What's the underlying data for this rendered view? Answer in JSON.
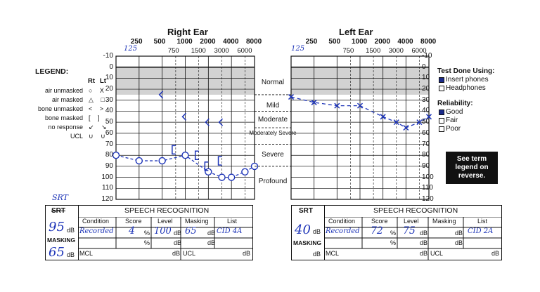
{
  "right_ear": {
    "title": "Right Ear",
    "freq_top": [
      "250",
      "500",
      "1000",
      "2000",
      "4000",
      "8000"
    ],
    "freq_sub": [
      "750",
      "1500",
      "3000",
      "6000"
    ],
    "handwritten_low_freq": "125"
  },
  "left_ear": {
    "title": "Left Ear",
    "freq_top": [
      "250",
      "500",
      "1000",
      "2000",
      "4000",
      "8000"
    ],
    "freq_sub": [
      "750",
      "1500",
      "3000",
      "6000"
    ],
    "handwritten_low_freq": "125"
  },
  "levels": [
    "-10",
    "0",
    "10",
    "20",
    "30",
    "40",
    "50",
    "60",
    "70",
    "80",
    "90",
    "100",
    "110",
    "120"
  ],
  "legend": {
    "title": "LEGEND:",
    "rt": "Rt",
    "lt": "Lt",
    "rows": [
      {
        "label": "air unmasked",
        "symbols": "○ X"
      },
      {
        "label": "air masked",
        "symbols": "△ □"
      },
      {
        "label": "bone unmasked",
        "symbols": "< >"
      },
      {
        "label": "bone masked",
        "symbols": "[ ]"
      },
      {
        "label": "no response",
        "symbols": "↙ ↘"
      },
      {
        "label": "UCL",
        "symbols": "∪ ∪"
      }
    ]
  },
  "categories": [
    "Normal",
    "Mild",
    "Moderate",
    "Moderately Severe",
    "Severe",
    "Profound"
  ],
  "test_done": {
    "title": "Test Done Using:",
    "options": [
      {
        "label": "Insert phones",
        "checked": true
      },
      {
        "label": "Headphones",
        "checked": false
      }
    ]
  },
  "reliability": {
    "title": "Reliability:",
    "options": [
      {
        "label": "Good",
        "checked": true
      },
      {
        "label": "Fair",
        "checked": false
      },
      {
        "label": "Poor",
        "checked": false
      }
    ]
  },
  "note": "See term legend on reverse.",
  "audiogram_data": {
    "right_air_unmasked": [
      [
        125,
        80
      ],
      [
        250,
        85
      ],
      [
        500,
        85
      ],
      [
        1000,
        80
      ],
      [
        2000,
        95
      ],
      [
        3000,
        100
      ],
      [
        4000,
        100
      ],
      [
        6000,
        95
      ],
      [
        8000,
        90
      ]
    ],
    "right_bone_unmasked": [
      [
        500,
        25
      ],
      [
        1000,
        45
      ],
      [
        2000,
        50
      ],
      [
        3000,
        50
      ]
    ],
    "right_bone_masked": [
      [
        750,
        75
      ],
      [
        1500,
        80
      ],
      [
        2000,
        90
      ],
      [
        3000,
        85
      ]
    ],
    "left_air_unmasked": [
      [
        125,
        27
      ],
      [
        250,
        32
      ],
      [
        500,
        35
      ],
      [
        1000,
        35
      ],
      [
        2000,
        45
      ],
      [
        3000,
        50
      ],
      [
        4000,
        55
      ],
      [
        6000,
        50
      ],
      [
        8000,
        45
      ]
    ]
  },
  "speech_right": {
    "srt_label": "SRT",
    "srt_hand": "SRT",
    "srt_value": "95",
    "db": "dB",
    "masking_label": "MASKING",
    "masking_value": "65",
    "title": "SPEECH RECOGNITION",
    "headers": [
      "Condition",
      "Score",
      "Level",
      "Masking",
      "List"
    ],
    "row1": {
      "condition": "Recorded",
      "score": "4",
      "level": "100",
      "masking": "65",
      "list": "CID 4A"
    },
    "pct": "%",
    "mcl": "MCL",
    "ucl": "UCL"
  },
  "speech_left": {
    "srt_label": "SRT",
    "srt_value": "40",
    "db": "dB",
    "masking_label": "MASKING",
    "title": "SPEECH RECOGNITION",
    "headers": [
      "Condition",
      "Score",
      "Level",
      "Masking",
      "List"
    ],
    "row1": {
      "condition": "Recorded",
      "score": "72",
      "level": "75",
      "masking": "",
      "list": "CID 2A"
    },
    "pct": "%",
    "mcl": "MCL",
    "ucl": "UCL"
  },
  "colors": {
    "ink": "#1e35b8",
    "shade": "#d2d2d2"
  }
}
